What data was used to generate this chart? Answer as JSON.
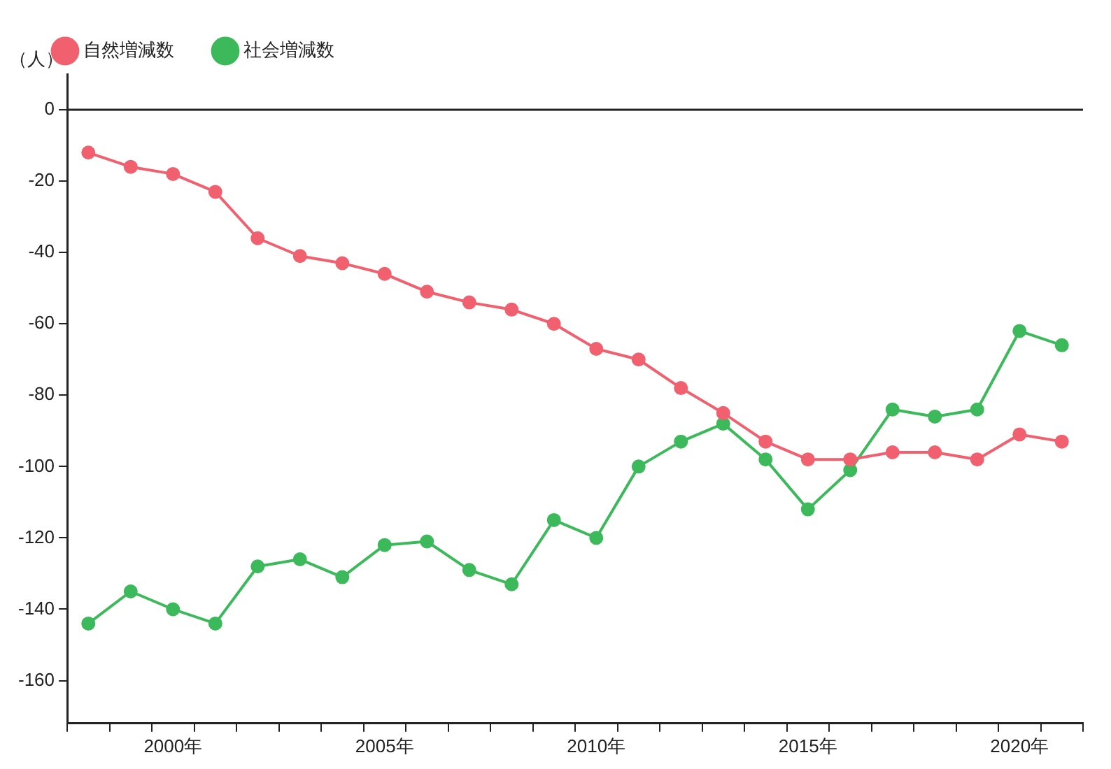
{
  "chart_data": {
    "type": "line",
    "ylabel": "（人）",
    "categories": [
      null,
      null,
      "2000年",
      null,
      null,
      null,
      null,
      "2005年",
      null,
      null,
      null,
      null,
      "2010年",
      null,
      null,
      null,
      null,
      "2015年",
      null,
      null,
      null,
      null,
      "2020年",
      null
    ],
    "series": [
      {
        "name": "自然増減数",
        "color": "#f0606e",
        "values": [
          -12,
          -16,
          -18,
          -23,
          -36,
          -41,
          -43,
          -46,
          -51,
          -54,
          -56,
          -60,
          -67,
          -70,
          -78,
          -85,
          -93,
          -98,
          -98,
          -96,
          -96,
          -98,
          -91,
          -93
        ]
      },
      {
        "name": "社会増減数",
        "color": "#3cb95a",
        "values": [
          -144,
          -135,
          -140,
          -144,
          -128,
          -126,
          -131,
          -122,
          -121,
          -129,
          -133,
          -115,
          -120,
          -100,
          -93,
          -88,
          -98,
          -112,
          -101,
          -84,
          -86,
          -84,
          -62,
          -66
        ]
      }
    ],
    "ylim": [
      -172,
      10
    ],
    "yticks": [
      0,
      -20,
      -40,
      -60,
      -80,
      -100,
      -120,
      -140,
      -160
    ],
    "ref_lines": [
      {
        "axis": "y",
        "value": 0,
        "color": "#222222"
      }
    ],
    "grid": false,
    "legend": "top left",
    "marker": "circle",
    "line_style": "solid"
  }
}
